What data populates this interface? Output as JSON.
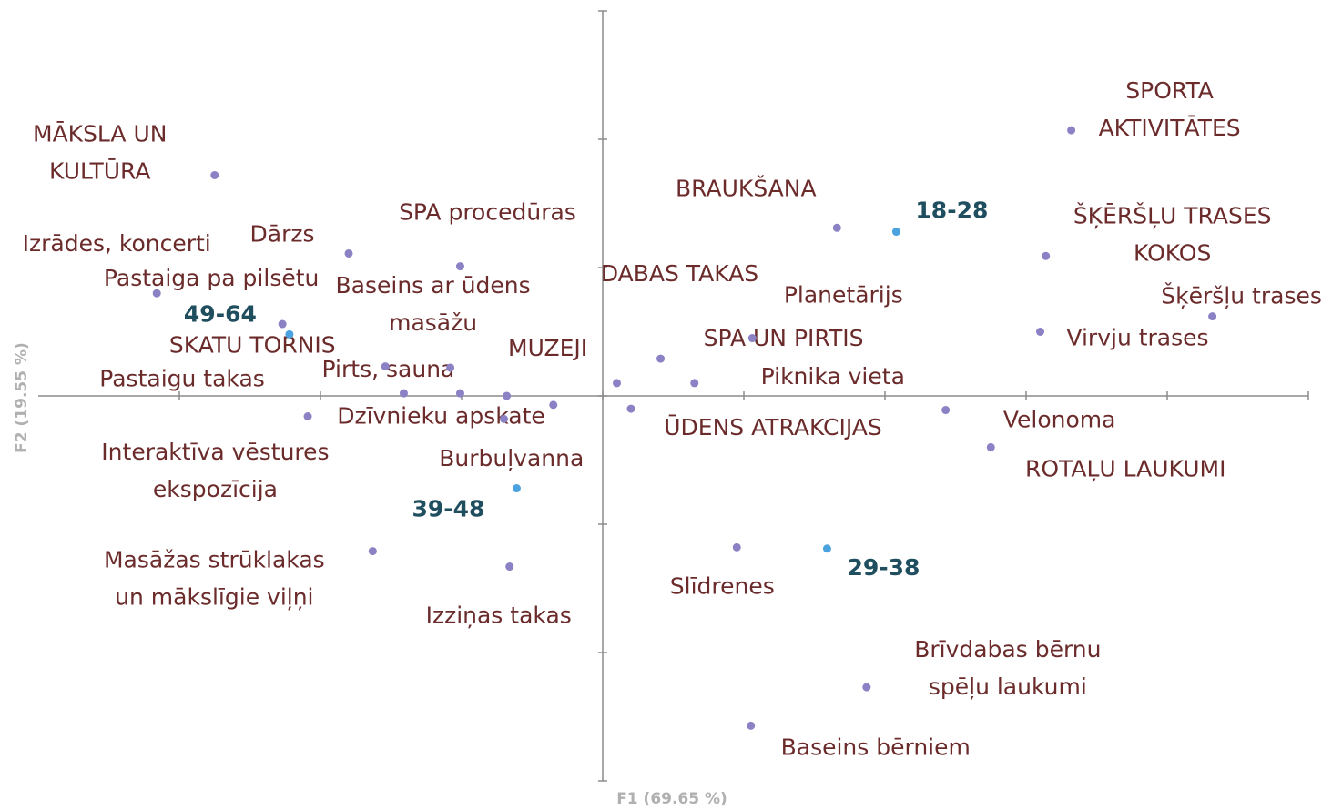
{
  "chart_data": {
    "type": "scatter",
    "x_label": "F1 (69.65 %)",
    "y_label": "F2 (19.55 %)",
    "xlim": [
      -4,
      5
    ],
    "ylim": [
      -3,
      3
    ],
    "xticks": [
      -3,
      -2,
      -1,
      0,
      1,
      2,
      3,
      4,
      5
    ],
    "yticks": [
      -3,
      -2,
      -1,
      0,
      1,
      2,
      3
    ],
    "series": [
      {
        "color": "#8a82c4",
        "label_color": "#6b2b2b",
        "labels": [
          [
            "MĀKSLA UN",
            "KULTŪRA"
          ],
          [
            "Izrādes, koncerti"
          ],
          [
            "Dārzs"
          ],
          [
            "SPA procedūras"
          ],
          [
            "Pastaiga pa pilsētu"
          ],
          [
            "Baseins ar ūdens",
            "masāžu"
          ],
          [
            "SKATU TORNIS"
          ],
          [
            "Pirts, sauna"
          ],
          [
            "Pastaigu takas"
          ],
          [
            "Interaktīva vēstures",
            "ekspozīcija"
          ],
          [
            "MUZEJI"
          ],
          [
            "Burbuļvanna"
          ],
          [
            "Dzīvnieku apskate"
          ],
          [
            "Masāžas strūklakas",
            "un mākslīgie viļņi"
          ],
          [
            "Izziņas takas"
          ],
          [
            "BRAUKŠANA"
          ],
          [
            "SPORTA",
            "AKTIVITĀTES"
          ],
          [
            "ŠĶĒRŠĻU TRASES",
            "KOKOS"
          ],
          [
            "Šķēršļu trases"
          ],
          [
            "Virvju trases"
          ],
          [
            "DABAS TAKAS"
          ],
          [
            "ŪDENS ATRAKCIJAS"
          ],
          [
            "SPA UN PIRTIS"
          ],
          [
            "Planetārijs"
          ],
          [
            "Piknika vieta"
          ],
          [
            "Velonoma"
          ],
          [
            "ROTAĻU LAUKUMI"
          ],
          [
            "Slīdrenes"
          ],
          [
            "Brīvdabas bērnu",
            "spēļu laukumi"
          ],
          [
            "Baseins bērniem"
          ]
        ],
        "x": [
          -2.75,
          -3.16,
          -1.8,
          -1.01,
          -2.27,
          -1.08,
          -1.54,
          -1.41,
          -2.09,
          -1.01,
          -0.68,
          -0.35,
          -0.7,
          -1.63,
          -0.66,
          1.66,
          3.32,
          3.14,
          4.32,
          3.1,
          0.1,
          0.2,
          0.41,
          1.06,
          0.65,
          2.43,
          2.75,
          0.95,
          1.87,
          1.05
        ],
        "y": [
          1.72,
          0.8,
          1.11,
          1.01,
          0.56,
          0.22,
          0.23,
          0.02,
          -0.16,
          0.02,
          0.0,
          -0.07,
          -0.18,
          -1.21,
          -1.33,
          1.31,
          2.07,
          1.09,
          0.62,
          0.5,
          0.1,
          -0.1,
          0.29,
          0.45,
          0.1,
          -0.11,
          -0.4,
          -1.18,
          -2.27,
          -2.57
        ]
      },
      {
        "color": "#4aa3df",
        "label_color": "#1f4e5f",
        "bold": true,
        "labels": [
          [
            "18-28"
          ],
          [
            "49-64"
          ],
          [
            "39-48"
          ],
          [
            "29-38"
          ]
        ],
        "x": [
          2.08,
          -2.22,
          -0.61,
          1.59
        ],
        "y": [
          1.28,
          0.48,
          -0.72,
          -1.19
        ]
      }
    ]
  }
}
